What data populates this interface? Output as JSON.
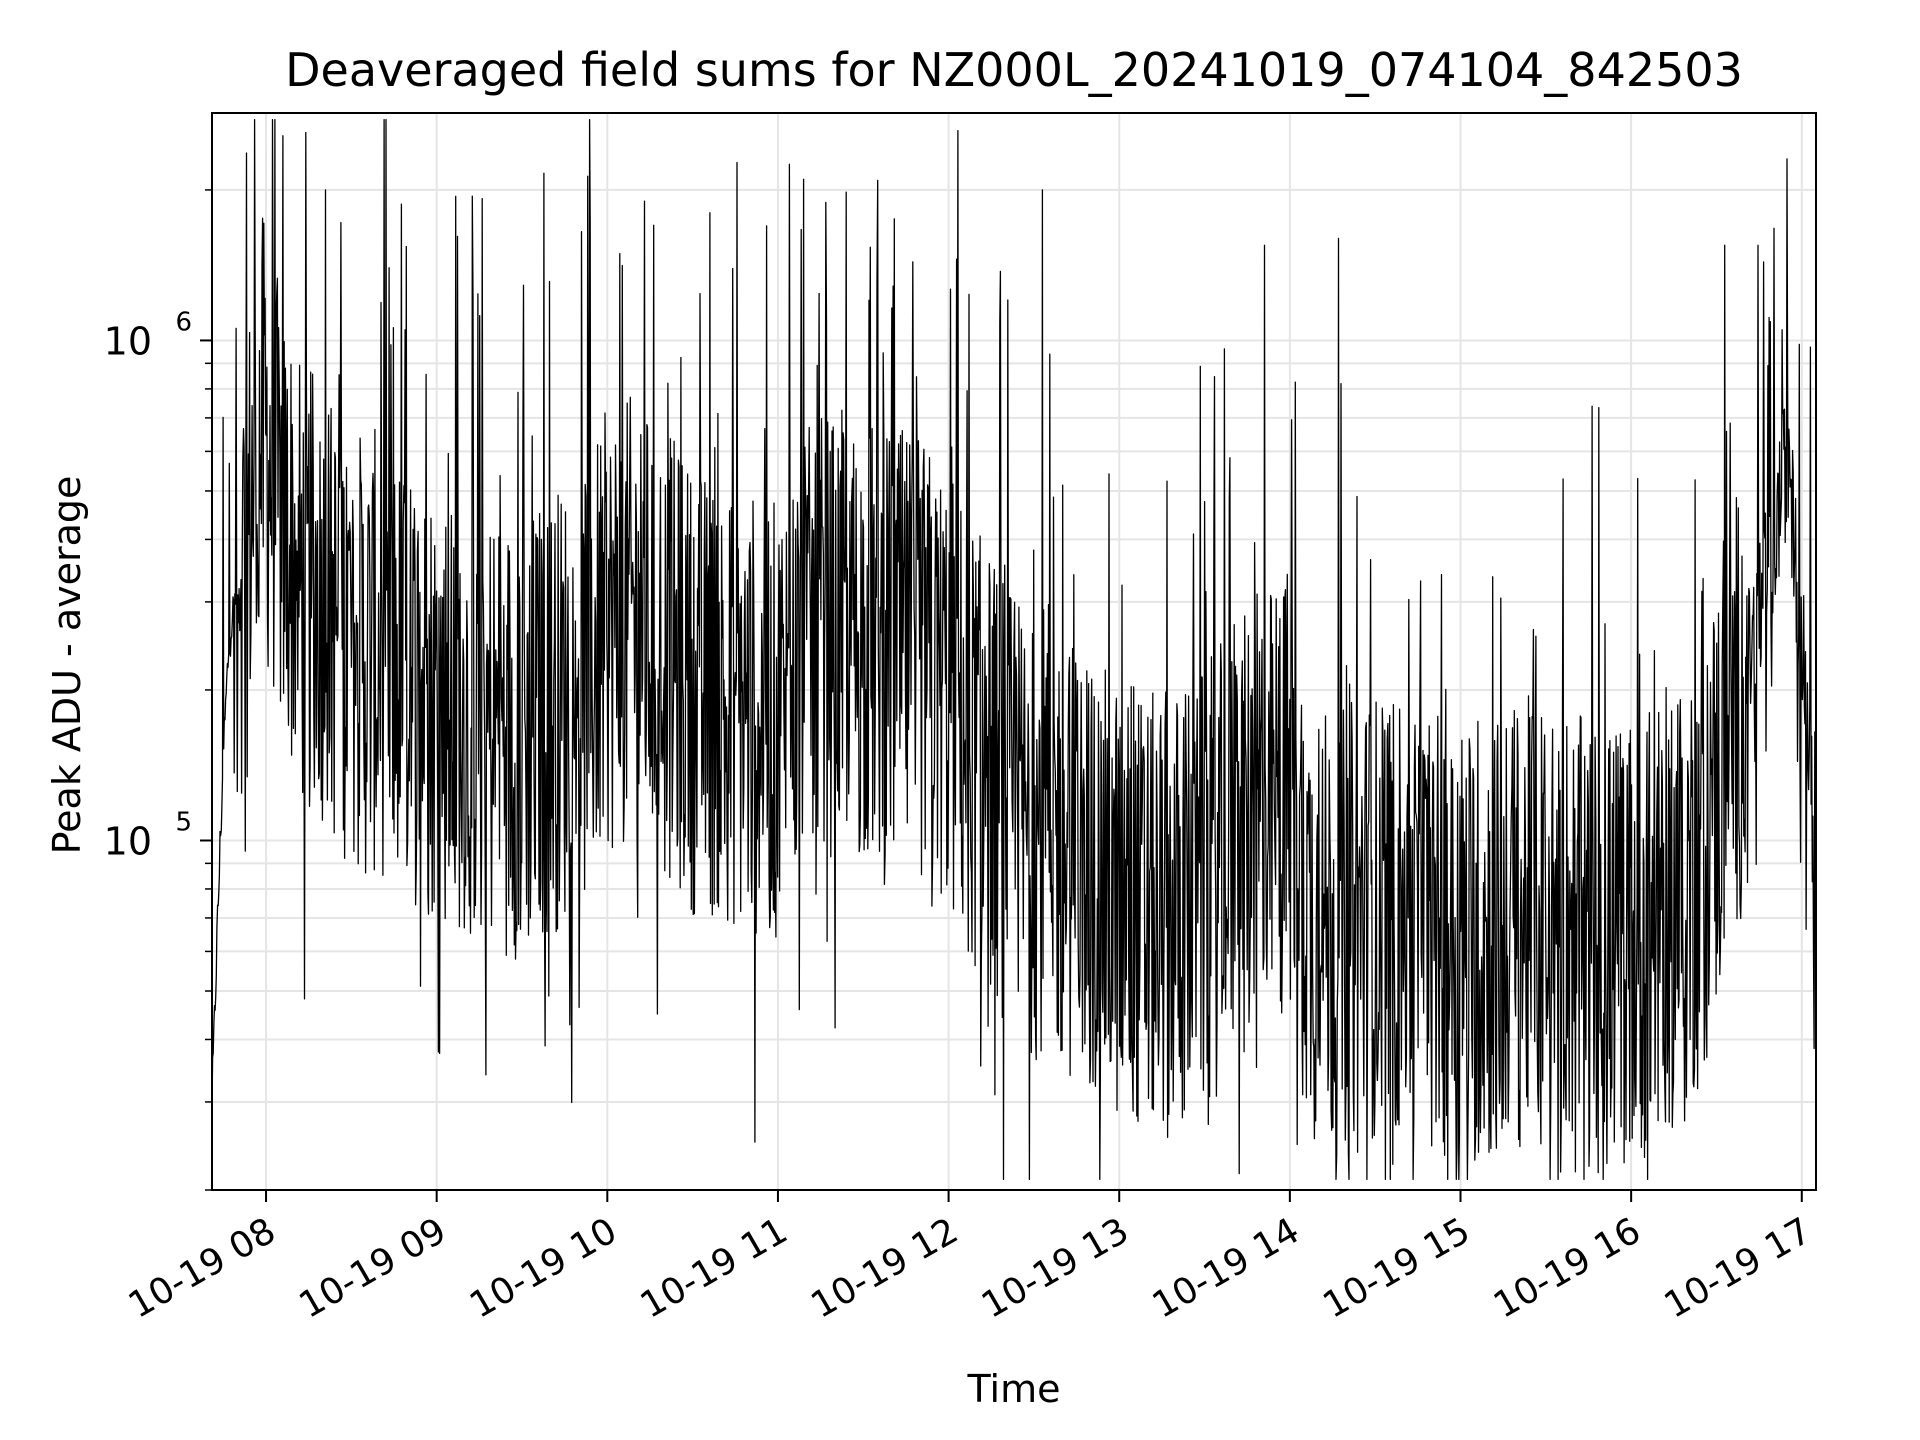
{
  "chart_data": {
    "type": "line",
    "title": "Deaveraged field sums for NZ000L_20241019_074104_842503",
    "xlabel": "Time",
    "ylabel": "Peak ADU - average",
    "x_axis_type": "datetime",
    "xlim": [
      "2024-10-19 07:41",
      "2024-10-19 17:05"
    ],
    "ylim": [
      20000,
      2850000
    ],
    "yscale": "log",
    "grid": true,
    "legend": "none",
    "line_color": "#000000",
    "grid_color": "#e5e5e5",
    "x_ticks": [
      {
        "value": "2024-10-19 08:00",
        "label": "10-19 08"
      },
      {
        "value": "2024-10-19 09:00",
        "label": "10-19 09"
      },
      {
        "value": "2024-10-19 10:00",
        "label": "10-19 10"
      },
      {
        "value": "2024-10-19 11:00",
        "label": "10-19 11"
      },
      {
        "value": "2024-10-19 12:00",
        "label": "10-19 12"
      },
      {
        "value": "2024-10-19 13:00",
        "label": "10-19 13"
      },
      {
        "value": "2024-10-19 14:00",
        "label": "10-19 14"
      },
      {
        "value": "2024-10-19 15:00",
        "label": "10-19 15"
      },
      {
        "value": "2024-10-19 16:00",
        "label": "10-19 16"
      },
      {
        "value": "2024-10-19 17:00",
        "label": "10-19 17"
      }
    ],
    "y_ticks": [
      {
        "value": 100000,
        "base": "10",
        "exp": "5"
      },
      {
        "value": 1000000,
        "base": "10",
        "exp": "6"
      }
    ],
    "series": [
      {
        "x": [
          "2024-10-19 07:41",
          "2024-10-19 07:43",
          "2024-10-19 07:45",
          "2024-10-19 07:47",
          "2024-10-19 07:49",
          "2024-10-19 07:51",
          "2024-10-19 07:53",
          "2024-10-19 07:55",
          "2024-10-19 07:57",
          "2024-10-19 07:59",
          "2024-10-19 08:02",
          "2024-10-19 08:05",
          "2024-10-19 08:08",
          "2024-10-19 08:11",
          "2024-10-19 08:14",
          "2024-10-19 08:17",
          "2024-10-19 08:20",
          "2024-10-19 08:23",
          "2024-10-19 08:26",
          "2024-10-19 08:30",
          "2024-10-19 08:35",
          "2024-10-19 08:40",
          "2024-10-19 08:45",
          "2024-10-19 08:50",
          "2024-10-19 08:55",
          "2024-10-19 09:00",
          "2024-10-19 09:10",
          "2024-10-19 09:20",
          "2024-10-19 09:30",
          "2024-10-19 09:40",
          "2024-10-19 09:50",
          "2024-10-19 10:00",
          "2024-10-19 10:10",
          "2024-10-19 10:20",
          "2024-10-19 10:30",
          "2024-10-19 10:40",
          "2024-10-19 10:50",
          "2024-10-19 11:00",
          "2024-10-19 11:04",
          "2024-10-19 11:10",
          "2024-10-19 11:20",
          "2024-10-19 11:30",
          "2024-10-19 11:40",
          "2024-10-19 11:50",
          "2024-10-19 12:00",
          "2024-10-19 12:10",
          "2024-10-19 12:20",
          "2024-10-19 12:30",
          "2024-10-19 12:34",
          "2024-10-19 12:40",
          "2024-10-19 12:50",
          "2024-10-19 13:00",
          "2024-10-19 13:10",
          "2024-10-19 13:20",
          "2024-10-19 13:30",
          "2024-10-19 13:40",
          "2024-10-19 13:50",
          "2024-10-19 14:00",
          "2024-10-19 14:07",
          "2024-10-19 14:15",
          "2024-10-19 14:25",
          "2024-10-19 14:35",
          "2024-10-19 14:45",
          "2024-10-19 14:55",
          "2024-10-19 15:05",
          "2024-10-19 15:15",
          "2024-10-19 15:25",
          "2024-10-19 15:35",
          "2024-10-19 15:45",
          "2024-10-19 15:55",
          "2024-10-19 16:05",
          "2024-10-19 16:15",
          "2024-10-19 16:25",
          "2024-10-19 16:35",
          "2024-10-19 16:45",
          "2024-10-19 16:50",
          "2024-10-19 16:55",
          "2024-10-19 17:00",
          "2024-10-19 17:05"
        ],
        "y": [
          30000,
          70000,
          150000,
          250000,
          300000,
          280000,
          350000,
          500000,
          600000,
          650000,
          550000,
          450000,
          400000,
          350000,
          300000,
          320000,
          300000,
          280000,
          260000,
          250000,
          230000,
          240000,
          220000,
          210000,
          200000,
          190000,
          180000,
          170000,
          160000,
          180000,
          200000,
          260000,
          280000,
          240000,
          200000,
          190000,
          180000,
          170000,
          200000,
          240000,
          260000,
          250000,
          240000,
          230000,
          200000,
          150000,
          120000,
          100000,
          110000,
          95000,
          85000,
          75000,
          70000,
          72000,
          80000,
          95000,
          110000,
          130000,
          70000,
          65000,
          70000,
          72000,
          68000,
          65000,
          62000,
          64000,
          70000,
          72000,
          60000,
          62000,
          65000,
          75000,
          90000,
          160000,
          280000,
          380000,
          600000,
          250000,
          110000
        ],
        "spike_peaks": [
          {
            "x": "2024-10-19 08:21",
            "y": 2000000
          },
          {
            "x": "2024-10-19 08:49",
            "y": 1050000
          },
          {
            "x": "2024-10-19 09:51",
            "y": 1650000
          },
          {
            "x": "2024-10-19 10:13",
            "y": 1900000
          },
          {
            "x": "2024-10-19 10:36",
            "y": 1800000
          },
          {
            "x": "2024-10-19 11:04",
            "y": 2250000
          },
          {
            "x": "2024-10-19 11:09",
            "y": 2100000
          },
          {
            "x": "2024-10-19 11:41",
            "y": 1750000
          },
          {
            "x": "2024-10-19 12:33",
            "y": 2000000
          },
          {
            "x": "2024-10-19 13:51",
            "y": 1550000
          },
          {
            "x": "2024-10-19 14:17",
            "y": 1600000
          },
          {
            "x": "2024-10-19 16:33",
            "y": 1550000
          },
          {
            "x": "2024-10-19 16:53",
            "y": 1050000
          }
        ]
      }
    ]
  }
}
